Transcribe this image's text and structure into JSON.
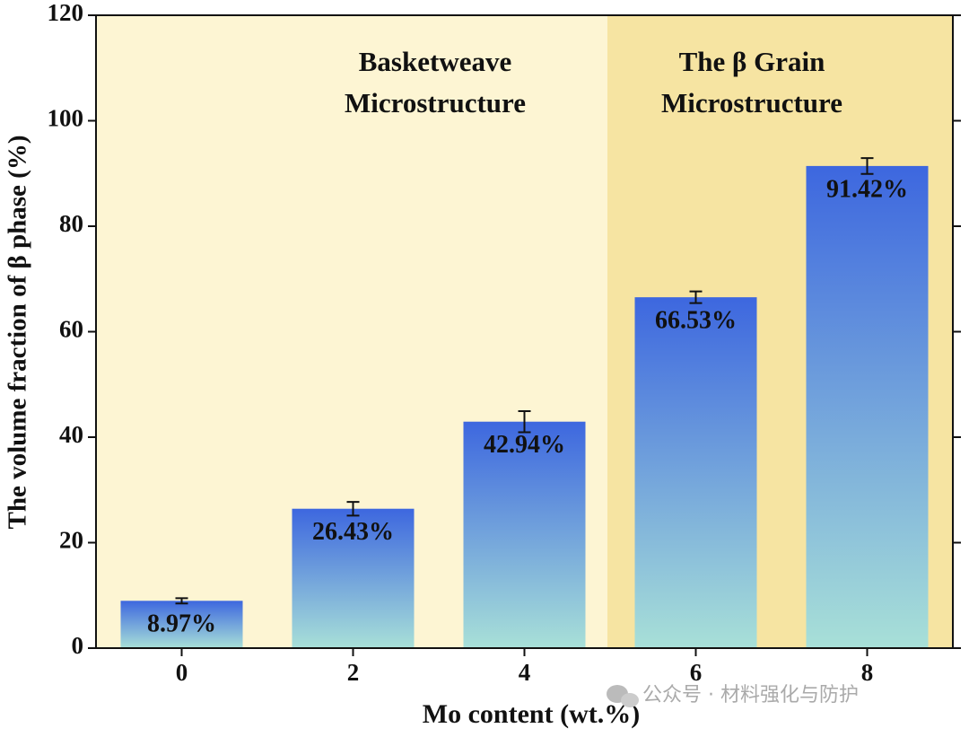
{
  "chart_data": {
    "type": "bar",
    "x_label": "Mo content (wt.%)",
    "y_label": "The volume fraction of β phase (%)",
    "categories": [
      "0",
      "2",
      "4",
      "6",
      "8"
    ],
    "values": [
      8.97,
      26.43,
      42.94,
      66.53,
      91.42
    ],
    "value_labels": [
      "8.97%",
      "26.43%",
      "42.94%",
      "66.53%",
      "91.42%"
    ],
    "errors": [
      0.5,
      1.3,
      2.0,
      1.1,
      1.5
    ],
    "gradient": [
      "#3d67df",
      "#a8e0d8"
    ],
    "ylim": [
      0,
      120
    ],
    "yticks": [
      0,
      20,
      40,
      60,
      80,
      100,
      120
    ],
    "regions": [
      {
        "lines": [
          "Basketweave",
          "Microstructure"
        ],
        "background": "#fdf5d3"
      },
      {
        "lines": [
          "The β Grain",
          "Microstructure"
        ],
        "background": "#f6e4a2"
      }
    ],
    "watermark": "公众号 · 材料强化与防护"
  }
}
